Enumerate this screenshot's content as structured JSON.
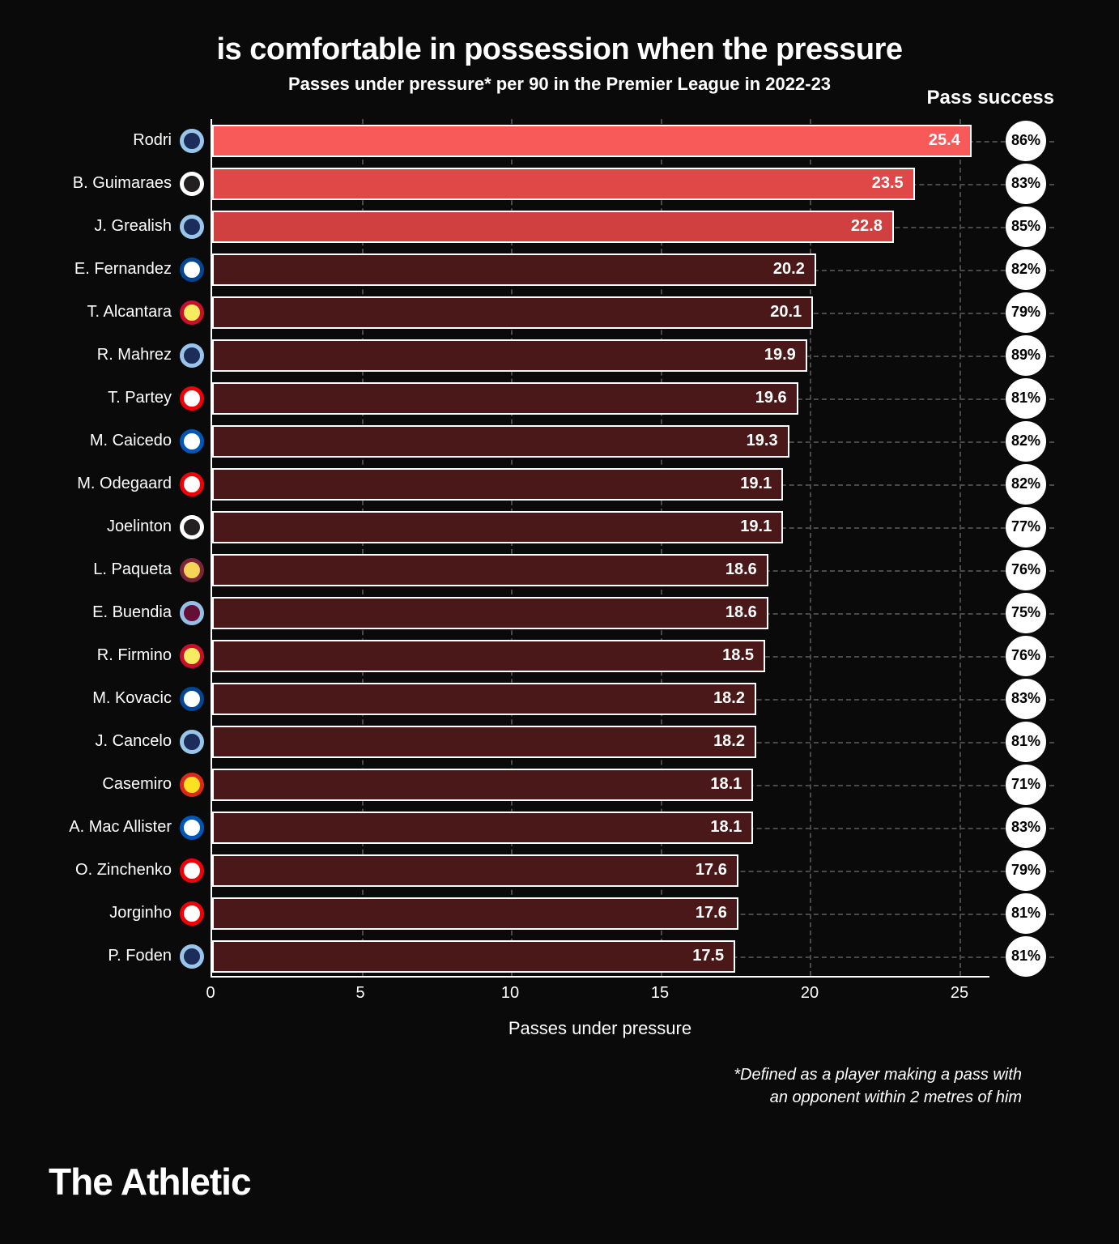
{
  "title": "is comfortable in possession when the pressure",
  "subtitle": "Passes under pressure* per 90 in the Premier League in 2022-23",
  "success_header": "Pass success",
  "x_label": "Passes under pressure",
  "footnote_line1": "*Defined as a player making a pass with",
  "footnote_line2": "an opponent within 2 metres of him",
  "brand": "The Athletic",
  "chart": {
    "type": "bar",
    "x_min": 0,
    "x_max": 26,
    "x_ticks": [
      0,
      5,
      10,
      15,
      20,
      25
    ],
    "bar_default_color": "#4a1818",
    "bar_highlight_colors": [
      "#f85a5a",
      "#e04848",
      "#d04040"
    ],
    "bar_border_color": "#ffffff",
    "grid_color": "#4a4a4a",
    "background_color": "#0a0a0a",
    "text_color": "#ffffff",
    "success_circle_bg": "#ffffff",
    "success_circle_text": "#000000",
    "players": [
      {
        "name": "Rodri",
        "value": 25.4,
        "success": "86%",
        "highlight": 0,
        "badge_bg": "#98c5e9",
        "badge_fg": "#1c2c5b"
      },
      {
        "name": "B. Guimaraes",
        "value": 23.5,
        "success": "83%",
        "highlight": 1,
        "badge_bg": "#ffffff",
        "badge_fg": "#241f20"
      },
      {
        "name": "J. Grealish",
        "value": 22.8,
        "success": "85%",
        "highlight": 2,
        "badge_bg": "#98c5e9",
        "badge_fg": "#1c2c5b"
      },
      {
        "name": "E. Fernandez",
        "value": 20.2,
        "success": "82%",
        "highlight": -1,
        "badge_bg": "#034694",
        "badge_fg": "#ffffff"
      },
      {
        "name": "T. Alcantara",
        "value": 20.1,
        "success": "79%",
        "highlight": -1,
        "badge_bg": "#c8102e",
        "badge_fg": "#f6eb61"
      },
      {
        "name": "R. Mahrez",
        "value": 19.9,
        "success": "89%",
        "highlight": -1,
        "badge_bg": "#98c5e9",
        "badge_fg": "#1c2c5b"
      },
      {
        "name": "T. Partey",
        "value": 19.6,
        "success": "81%",
        "highlight": -1,
        "badge_bg": "#ef0107",
        "badge_fg": "#ffffff"
      },
      {
        "name": "M. Caicedo",
        "value": 19.3,
        "success": "82%",
        "highlight": -1,
        "badge_bg": "#0057b8",
        "badge_fg": "#ffffff"
      },
      {
        "name": "M. Odegaard",
        "value": 19.1,
        "success": "82%",
        "highlight": -1,
        "badge_bg": "#ef0107",
        "badge_fg": "#ffffff"
      },
      {
        "name": "Joelinton",
        "value": 19.1,
        "success": "77%",
        "highlight": -1,
        "badge_bg": "#ffffff",
        "badge_fg": "#241f20"
      },
      {
        "name": "L. Paqueta",
        "value": 18.6,
        "success": "76%",
        "highlight": -1,
        "badge_bg": "#7a263a",
        "badge_fg": "#f3d459"
      },
      {
        "name": "E. Buendia",
        "value": 18.6,
        "success": "75%",
        "highlight": -1,
        "badge_bg": "#95bfe5",
        "badge_fg": "#670e36"
      },
      {
        "name": "R. Firmino",
        "value": 18.5,
        "success": "76%",
        "highlight": -1,
        "badge_bg": "#c8102e",
        "badge_fg": "#f6eb61"
      },
      {
        "name": "M. Kovacic",
        "value": 18.2,
        "success": "83%",
        "highlight": -1,
        "badge_bg": "#034694",
        "badge_fg": "#ffffff"
      },
      {
        "name": "J. Cancelo",
        "value": 18.2,
        "success": "81%",
        "highlight": -1,
        "badge_bg": "#98c5e9",
        "badge_fg": "#1c2c5b"
      },
      {
        "name": "Casemiro",
        "value": 18.1,
        "success": "71%",
        "highlight": -1,
        "badge_bg": "#da291c",
        "badge_fg": "#fbe122"
      },
      {
        "name": "A. Mac Allister",
        "value": 18.1,
        "success": "83%",
        "highlight": -1,
        "badge_bg": "#0057b8",
        "badge_fg": "#ffffff"
      },
      {
        "name": "O. Zinchenko",
        "value": 17.6,
        "success": "79%",
        "highlight": -1,
        "badge_bg": "#ef0107",
        "badge_fg": "#ffffff"
      },
      {
        "name": "Jorginho",
        "value": 17.6,
        "success": "81%",
        "highlight": -1,
        "badge_bg": "#ef0107",
        "badge_fg": "#ffffff"
      },
      {
        "name": "P. Foden",
        "value": 17.5,
        "success": "81%",
        "highlight": -1,
        "badge_bg": "#98c5e9",
        "badge_fg": "#1c2c5b"
      }
    ]
  }
}
